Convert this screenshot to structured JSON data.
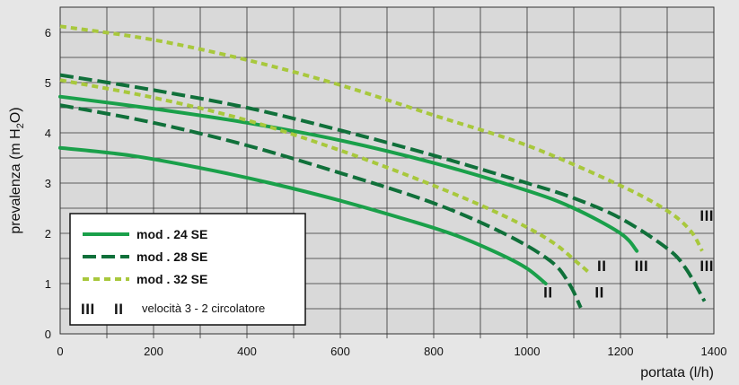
{
  "chart_data": {
    "type": "line",
    "title": "",
    "xlabel": "portata (l/h)",
    "ylabel": "prevalenza (m H2O)",
    "ylabel_parts": {
      "pre": "prevalenza (m H",
      "sub": "2",
      "post": "O)"
    },
    "xlim": [
      0,
      1400
    ],
    "ylim": [
      0,
      6.5
    ],
    "x_ticks": [
      0,
      200,
      400,
      600,
      800,
      1000,
      1200,
      1400
    ],
    "y_ticks": [
      0,
      1,
      2,
      3,
      4,
      5,
      6
    ],
    "grid": true,
    "legend_position": "bottom-left",
    "series": [
      {
        "name": "mod . 24 SE",
        "speed": "III",
        "color": "#1aa04a",
        "dash": "solid",
        "points": [
          [
            0,
            4.72
          ],
          [
            200,
            4.48
          ],
          [
            400,
            4.2
          ],
          [
            600,
            3.85
          ],
          [
            800,
            3.4
          ],
          [
            1000,
            2.85
          ],
          [
            1100,
            2.5
          ],
          [
            1200,
            2.0
          ],
          [
            1235,
            1.65
          ]
        ]
      },
      {
        "name": "mod . 24 SE",
        "speed": "II",
        "color": "#1aa04a",
        "dash": "solid",
        "points": [
          [
            0,
            3.7
          ],
          [
            150,
            3.55
          ],
          [
            300,
            3.3
          ],
          [
            450,
            3.0
          ],
          [
            600,
            2.65
          ],
          [
            750,
            2.25
          ],
          [
            850,
            1.95
          ],
          [
            950,
            1.55
          ],
          [
            1000,
            1.3
          ],
          [
            1040,
            1.0
          ]
        ]
      },
      {
        "name": "mod . 28 SE",
        "speed": "III",
        "color": "#10703a",
        "dash": "long",
        "points": [
          [
            0,
            5.15
          ],
          [
            200,
            4.85
          ],
          [
            400,
            4.5
          ],
          [
            600,
            4.05
          ],
          [
            800,
            3.55
          ],
          [
            1000,
            3.0
          ],
          [
            1100,
            2.7
          ],
          [
            1200,
            2.3
          ],
          [
            1300,
            1.7
          ],
          [
            1340,
            1.3
          ],
          [
            1380,
            0.65
          ]
        ]
      },
      {
        "name": "mod . 28 SE",
        "speed": "II",
        "color": "#10703a",
        "dash": "long",
        "points": [
          [
            0,
            4.55
          ],
          [
            200,
            4.2
          ],
          [
            400,
            3.75
          ],
          [
            600,
            3.2
          ],
          [
            800,
            2.6
          ],
          [
            950,
            2.0
          ],
          [
            1050,
            1.45
          ],
          [
            1090,
            1.0
          ],
          [
            1115,
            0.52
          ]
        ]
      },
      {
        "name": "mod . 32 SE",
        "speed": "III",
        "color": "#a8c83c",
        "dash": "short",
        "points": [
          [
            0,
            6.12
          ],
          [
            200,
            5.85
          ],
          [
            400,
            5.45
          ],
          [
            600,
            4.95
          ],
          [
            800,
            4.35
          ],
          [
            1000,
            3.75
          ],
          [
            1200,
            2.95
          ],
          [
            1300,
            2.45
          ],
          [
            1350,
            2.05
          ],
          [
            1375,
            1.65
          ]
        ]
      },
      {
        "name": "mod . 32 SE",
        "speed": "II",
        "color": "#a8c83c",
        "dash": "short",
        "points": [
          [
            0,
            5.05
          ],
          [
            200,
            4.7
          ],
          [
            400,
            4.25
          ],
          [
            600,
            3.65
          ],
          [
            800,
            2.95
          ],
          [
            950,
            2.35
          ],
          [
            1050,
            1.85
          ],
          [
            1110,
            1.4
          ],
          [
            1135,
            1.2
          ]
        ]
      }
    ],
    "annotations": [
      {
        "text": "III",
        "x": 1385,
        "y": 2.25
      },
      {
        "text": "III",
        "x": 1385,
        "y": 1.25
      },
      {
        "text": "III",
        "x": 1245,
        "y": 1.25
      },
      {
        "text": "II",
        "x": 1160,
        "y": 1.25
      },
      {
        "text": "II",
        "x": 1045,
        "y": 0.72
      },
      {
        "text": "II",
        "x": 1155,
        "y": 0.72
      }
    ],
    "legend": [
      {
        "label": "mod . 24 SE",
        "color": "#1aa04a",
        "dash": "solid"
      },
      {
        "label": "mod . 28 SE",
        "color": "#10703a",
        "dash": "long"
      },
      {
        "label": "mod . 32 SE",
        "color": "#a8c83c",
        "dash": "short"
      }
    ],
    "legend_note": {
      "symbols": [
        "III",
        "II"
      ],
      "text": "velocità 3 - 2 circolatore"
    }
  }
}
